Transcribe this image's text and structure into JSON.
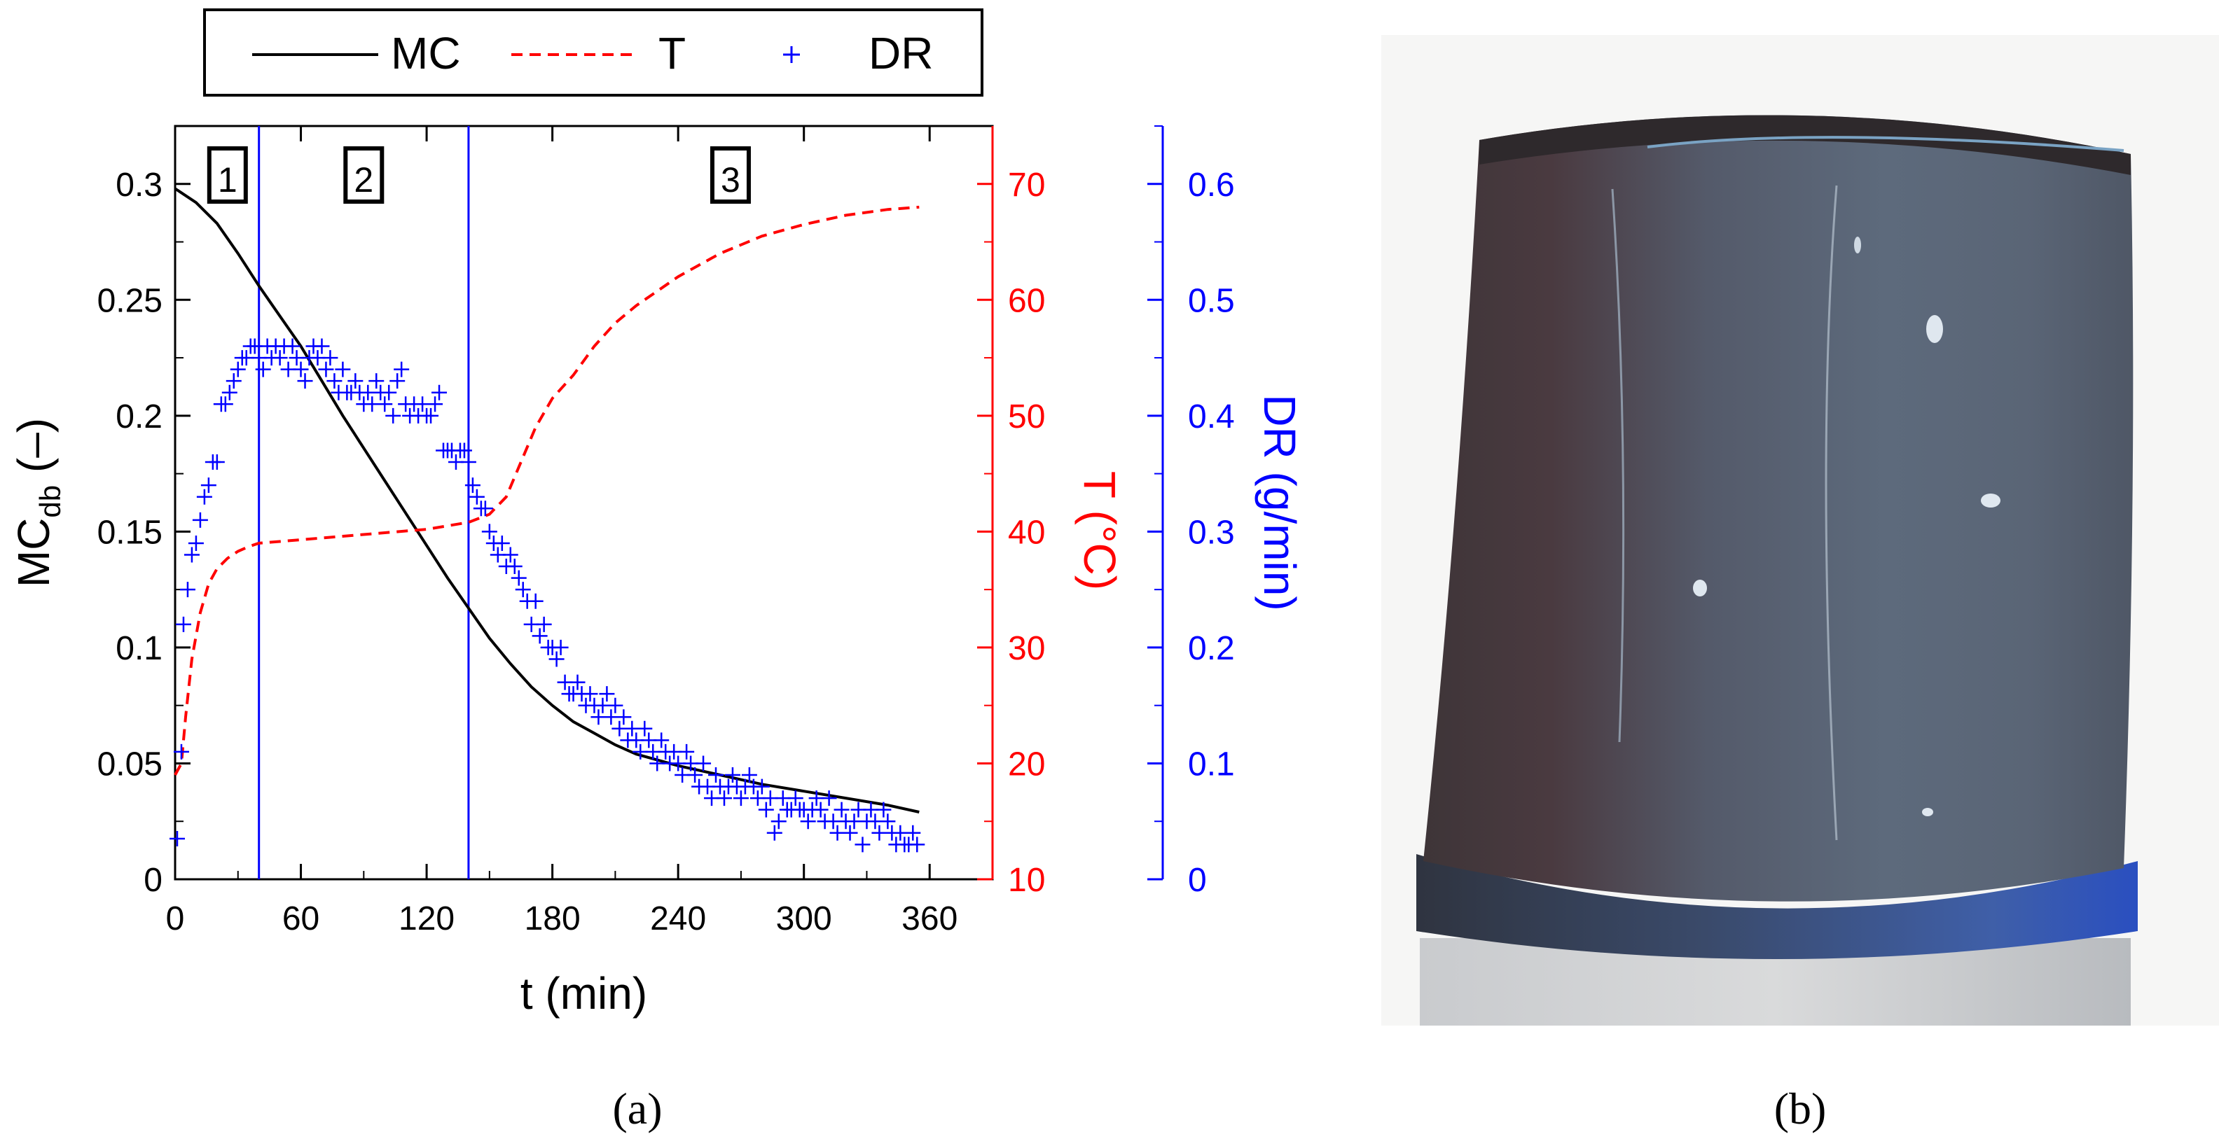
{
  "chart_data": {
    "type": "line",
    "xlabel": "t (min)",
    "ylabel_left": {
      "main": "MC",
      "sub": "db",
      "suffix": " (–)"
    },
    "ylabel_right1": "T (°C)",
    "ylabel_right2": "DR (g/min)",
    "xlim": [
      0,
      390
    ],
    "ylim": [
      0,
      0.325
    ],
    "ylim_T": [
      10,
      75
    ],
    "ylim_DR": [
      0,
      0.65
    ],
    "x_ticks": [
      "0",
      "60",
      "120",
      "180",
      "240",
      "300",
      "360"
    ],
    "y_ticks": [
      "0",
      "0.05",
      "0.1",
      "0.15",
      "0.2",
      "0.25",
      "0.3"
    ],
    "T_ticks": [
      "10",
      "20",
      "30",
      "40",
      "50",
      "60",
      "70"
    ],
    "DR_ticks": [
      "0",
      "0.1",
      "0.2",
      "0.3",
      "0.4",
      "0.5",
      "0.6"
    ],
    "vlines": [
      40,
      140
    ],
    "phase_labels": [
      {
        "label": "1",
        "x": 25
      },
      {
        "label": "2",
        "x": 90
      },
      {
        "label": "3",
        "x": 265
      }
    ],
    "legend": {
      "placement": "top",
      "entries": [
        "MC",
        "T",
        "DR"
      ]
    },
    "series": [
      {
        "name": "MC",
        "axis": "left",
        "color": "#000000",
        "style": "solid",
        "points": [
          [
            0,
            0.298
          ],
          [
            10,
            0.292
          ],
          [
            20,
            0.283
          ],
          [
            30,
            0.27
          ],
          [
            40,
            0.256
          ],
          [
            50,
            0.243
          ],
          [
            60,
            0.23
          ],
          [
            70,
            0.215
          ],
          [
            80,
            0.2
          ],
          [
            90,
            0.186
          ],
          [
            100,
            0.172
          ],
          [
            110,
            0.158
          ],
          [
            120,
            0.144
          ],
          [
            130,
            0.13
          ],
          [
            140,
            0.117
          ],
          [
            150,
            0.104
          ],
          [
            160,
            0.093
          ],
          [
            170,
            0.083
          ],
          [
            180,
            0.075
          ],
          [
            190,
            0.068
          ],
          [
            200,
            0.063
          ],
          [
            210,
            0.058
          ],
          [
            220,
            0.054
          ],
          [
            240,
            0.049
          ],
          [
            260,
            0.045
          ],
          [
            280,
            0.041
          ],
          [
            300,
            0.038
          ],
          [
            320,
            0.035
          ],
          [
            340,
            0.032
          ],
          [
            355,
            0.029
          ]
        ]
      },
      {
        "name": "T",
        "axis": "right1",
        "color": "#ff0000",
        "style": "dashed",
        "points": [
          [
            0,
            19
          ],
          [
            3,
            20
          ],
          [
            5,
            24
          ],
          [
            8,
            29
          ],
          [
            12,
            33
          ],
          [
            16,
            35.5
          ],
          [
            20,
            36.8
          ],
          [
            25,
            37.7
          ],
          [
            30,
            38.3
          ],
          [
            35,
            38.7
          ],
          [
            40,
            39
          ],
          [
            60,
            39.3
          ],
          [
            80,
            39.6
          ],
          [
            100,
            39.9
          ],
          [
            120,
            40.2
          ],
          [
            140,
            40.8
          ],
          [
            150,
            41.5
          ],
          [
            158,
            43
          ],
          [
            165,
            46
          ],
          [
            172,
            49
          ],
          [
            180,
            51.5
          ],
          [
            190,
            53.5
          ],
          [
            200,
            56
          ],
          [
            210,
            58
          ],
          [
            220,
            59.5
          ],
          [
            240,
            62
          ],
          [
            260,
            64
          ],
          [
            280,
            65.5
          ],
          [
            300,
            66.5
          ],
          [
            320,
            67.3
          ],
          [
            340,
            67.8
          ],
          [
            355,
            68
          ]
        ]
      },
      {
        "name": "DR",
        "axis": "right2",
        "color": "#0000ff",
        "style": "markers",
        "points": [
          [
            1,
            0.035
          ],
          [
            3,
            0.11
          ],
          [
            4,
            0.22
          ],
          [
            6,
            0.25
          ],
          [
            8,
            0.28
          ],
          [
            10,
            0.29
          ],
          [
            12,
            0.31
          ],
          [
            14,
            0.33
          ],
          [
            16,
            0.34
          ],
          [
            18,
            0.36
          ],
          [
            20,
            0.36
          ],
          [
            22,
            0.41
          ],
          [
            24,
            0.41
          ],
          [
            26,
            0.42
          ],
          [
            28,
            0.43
          ],
          [
            30,
            0.44
          ],
          [
            32,
            0.45
          ],
          [
            34,
            0.45
          ],
          [
            36,
            0.46
          ],
          [
            38,
            0.46
          ],
          [
            40,
            0.45
          ],
          [
            42,
            0.44
          ],
          [
            44,
            0.46
          ],
          [
            46,
            0.45
          ],
          [
            48,
            0.46
          ],
          [
            50,
            0.45
          ],
          [
            52,
            0.46
          ],
          [
            54,
            0.44
          ],
          [
            56,
            0.46
          ],
          [
            58,
            0.45
          ],
          [
            60,
            0.44
          ],
          [
            62,
            0.43
          ],
          [
            64,
            0.45
          ],
          [
            66,
            0.46
          ],
          [
            68,
            0.45
          ],
          [
            70,
            0.46
          ],
          [
            72,
            0.44
          ],
          [
            74,
            0.45
          ],
          [
            76,
            0.43
          ],
          [
            78,
            0.42
          ],
          [
            80,
            0.44
          ],
          [
            82,
            0.42
          ],
          [
            84,
            0.42
          ],
          [
            86,
            0.43
          ],
          [
            88,
            0.42
          ],
          [
            90,
            0.41
          ],
          [
            92,
            0.42
          ],
          [
            94,
            0.41
          ],
          [
            96,
            0.43
          ],
          [
            98,
            0.42
          ],
          [
            100,
            0.41
          ],
          [
            102,
            0.42
          ],
          [
            104,
            0.4
          ],
          [
            106,
            0.43
          ],
          [
            108,
            0.44
          ],
          [
            110,
            0.41
          ],
          [
            112,
            0.4
          ],
          [
            114,
            0.41
          ],
          [
            116,
            0.4
          ],
          [
            118,
            0.41
          ],
          [
            120,
            0.4
          ],
          [
            122,
            0.4
          ],
          [
            124,
            0.41
          ],
          [
            126,
            0.42
          ],
          [
            128,
            0.37
          ],
          [
            130,
            0.37
          ],
          [
            132,
            0.37
          ],
          [
            134,
            0.36
          ],
          [
            136,
            0.37
          ],
          [
            138,
            0.37
          ],
          [
            140,
            0.36
          ],
          [
            142,
            0.34
          ],
          [
            144,
            0.33
          ],
          [
            146,
            0.32
          ],
          [
            148,
            0.32
          ],
          [
            150,
            0.3
          ],
          [
            152,
            0.29
          ],
          [
            154,
            0.28
          ],
          [
            156,
            0.29
          ],
          [
            158,
            0.27
          ],
          [
            160,
            0.28
          ],
          [
            162,
            0.27
          ],
          [
            164,
            0.26
          ],
          [
            166,
            0.25
          ],
          [
            168,
            0.24
          ],
          [
            170,
            0.22
          ],
          [
            172,
            0.24
          ],
          [
            174,
            0.21
          ],
          [
            176,
            0.22
          ],
          [
            178,
            0.2
          ],
          [
            180,
            0.2
          ],
          [
            182,
            0.19
          ],
          [
            184,
            0.2
          ],
          [
            186,
            0.17
          ],
          [
            188,
            0.16
          ],
          [
            190,
            0.16
          ],
          [
            192,
            0.17
          ],
          [
            194,
            0.16
          ],
          [
            196,
            0.15
          ],
          [
            198,
            0.16
          ],
          [
            200,
            0.15
          ],
          [
            202,
            0.14
          ],
          [
            204,
            0.15
          ],
          [
            206,
            0.16
          ],
          [
            208,
            0.14
          ],
          [
            210,
            0.15
          ],
          [
            212,
            0.13
          ],
          [
            214,
            0.14
          ],
          [
            216,
            0.12
          ],
          [
            218,
            0.13
          ],
          [
            220,
            0.12
          ],
          [
            222,
            0.11
          ],
          [
            224,
            0.13
          ],
          [
            226,
            0.12
          ],
          [
            228,
            0.11
          ],
          [
            230,
            0.1
          ],
          [
            232,
            0.12
          ],
          [
            234,
            0.11
          ],
          [
            236,
            0.1
          ],
          [
            238,
            0.11
          ],
          [
            240,
            0.1
          ],
          [
            242,
            0.09
          ],
          [
            244,
            0.11
          ],
          [
            246,
            0.1
          ],
          [
            248,
            0.09
          ],
          [
            250,
            0.08
          ],
          [
            252,
            0.1
          ],
          [
            254,
            0.08
          ],
          [
            256,
            0.07
          ],
          [
            258,
            0.09
          ],
          [
            260,
            0.08
          ],
          [
            262,
            0.07
          ],
          [
            264,
            0.08
          ],
          [
            266,
            0.09
          ],
          [
            268,
            0.08
          ],
          [
            270,
            0.07
          ],
          [
            272,
            0.08
          ],
          [
            274,
            0.09
          ],
          [
            276,
            0.08
          ],
          [
            278,
            0.07
          ],
          [
            280,
            0.08
          ],
          [
            282,
            0.06
          ],
          [
            284,
            0.07
          ],
          [
            286,
            0.04
          ],
          [
            288,
            0.05
          ],
          [
            290,
            0.07
          ],
          [
            292,
            0.06
          ],
          [
            294,
            0.06
          ],
          [
            296,
            0.07
          ],
          [
            298,
            0.06
          ],
          [
            300,
            0.06
          ],
          [
            302,
            0.05
          ],
          [
            304,
            0.06
          ],
          [
            306,
            0.07
          ],
          [
            308,
            0.06
          ],
          [
            310,
            0.05
          ],
          [
            312,
            0.07
          ],
          [
            314,
            0.05
          ],
          [
            316,
            0.04
          ],
          [
            318,
            0.06
          ],
          [
            320,
            0.05
          ],
          [
            322,
            0.04
          ],
          [
            324,
            0.05
          ],
          [
            326,
            0.06
          ],
          [
            328,
            0.03
          ],
          [
            330,
            0.05
          ],
          [
            332,
            0.06
          ],
          [
            334,
            0.05
          ],
          [
            336,
            0.04
          ],
          [
            338,
            0.06
          ],
          [
            340,
            0.05
          ],
          [
            342,
            0.04
          ],
          [
            344,
            0.03
          ],
          [
            346,
            0.04
          ],
          [
            348,
            0.03
          ],
          [
            350,
            0.03
          ],
          [
            352,
            0.04
          ],
          [
            354,
            0.03
          ]
        ]
      }
    ]
  },
  "panels": {
    "a_label": "(a)",
    "b_label": "(b)"
  }
}
